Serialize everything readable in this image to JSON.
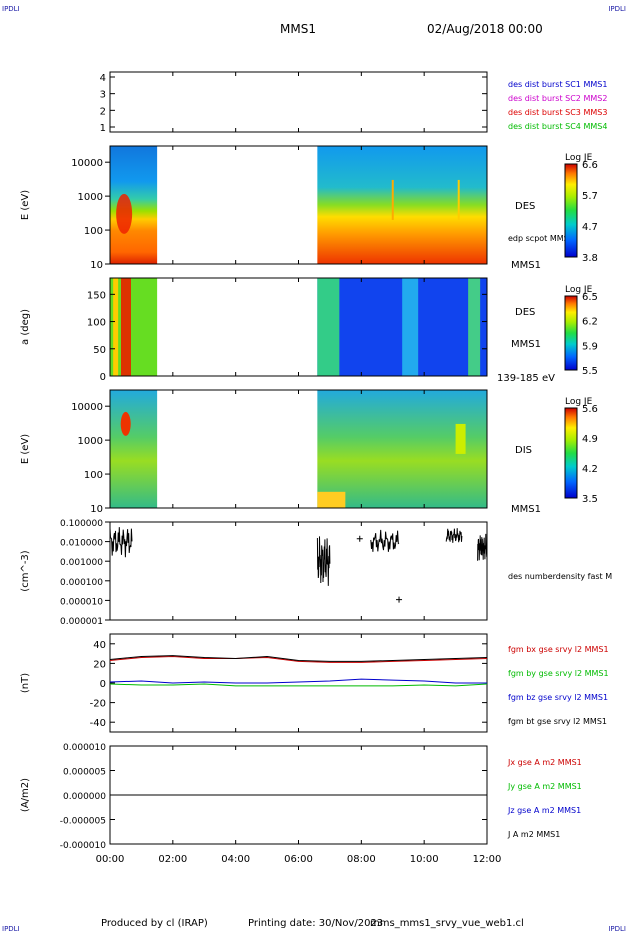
{
  "header": {
    "corner_label": "IPDLI",
    "spacecraft": "MMS1",
    "date_time": "02/Aug/2018 00:00"
  },
  "footer": {
    "produced_by": "Produced by cl (IRAP)",
    "printing_date": "Printing date: 30/Nov/2023",
    "file": "mms_mms1_srvy_vue_web1.cl"
  },
  "colors": {
    "mms1": "#0000cc",
    "mms2": "#cc00cc",
    "mms3": "#dd0000",
    "mms4": "#00bb00",
    "bx": "#cc0000",
    "by": "#00bb00",
    "bz": "#0000cc",
    "bt": "#000000"
  },
  "chart_data": [
    {
      "type": "line",
      "panel": "availability",
      "yticks": [
        "1",
        "2",
        "3",
        "4"
      ],
      "ylim": [
        0.7,
        4.3
      ],
      "series": [
        {
          "name": "des dist burst SC1 MMS1"
        },
        {
          "name": "des dist burst SC2 MMS2"
        },
        {
          "name": "des dist burst SC3 MMS3"
        },
        {
          "name": "des dist burst SC4 MMS4"
        }
      ]
    },
    {
      "type": "heatmap",
      "panel": "des-energy",
      "ylabel": "E (eV)",
      "yscale": "log",
      "ylim": [
        10,
        30000
      ],
      "yticks": [
        "10",
        "100",
        "1000",
        "10000"
      ],
      "label": "DES",
      "annotation": "edp scpot MMS1",
      "sc_label": "MMS1",
      "colorbar": {
        "title": "Log JE",
        "ticks": [
          "6.6",
          "5.7",
          "4.7",
          "3.8"
        ],
        "range": [
          3.8,
          6.6
        ]
      },
      "data_gap_hours": [
        1.5,
        6.6
      ]
    },
    {
      "type": "heatmap",
      "panel": "des-pitch-angle",
      "ylabel": "a (deg)",
      "ylim": [
        0,
        180
      ],
      "yticks": [
        "0",
        "50",
        "100",
        "150"
      ],
      "label": "DES",
      "sc_label": "MMS1",
      "energy_range": "139-185 eV",
      "colorbar": {
        "title": "Log JE",
        "ticks": [
          "6.5",
          "6.2",
          "5.9",
          "5.5"
        ],
        "range": [
          5.5,
          6.5
        ]
      },
      "data_gap_hours": [
        1.5,
        6.6
      ]
    },
    {
      "type": "heatmap",
      "panel": "dis-energy",
      "ylabel": "E (eV)",
      "yscale": "log",
      "ylim": [
        10,
        30000
      ],
      "yticks": [
        "10",
        "100",
        "1000",
        "10000"
      ],
      "label": "DIS",
      "sc_label": "MMS1",
      "colorbar": {
        "title": "Log JE",
        "ticks": [
          "5.6",
          "4.9",
          "4.2",
          "3.5"
        ],
        "range": [
          3.5,
          5.6
        ]
      },
      "data_gap_hours": [
        1.5,
        6.6
      ]
    },
    {
      "type": "line",
      "panel": "density",
      "ylabel": "(cm^-3)",
      "yscale": "log",
      "ylim": [
        1e-06,
        0.1
      ],
      "yticks": [
        "0.100000",
        "0.010000",
        "0.001000",
        "0.000100",
        "0.000010",
        "0.000001"
      ],
      "series": [
        {
          "name": "des numberdensity fast M"
        }
      ],
      "isolated_points": [
        {
          "x": 7.95,
          "y": 0.014
        },
        {
          "x": 9.2,
          "y": 1.1e-05
        }
      ]
    },
    {
      "type": "line",
      "panel": "magnetic-field",
      "ylabel": "(nT)",
      "ylim": [
        -50,
        50
      ],
      "yticks": [
        "40",
        "20",
        "0",
        "-20",
        "-40"
      ],
      "series": [
        {
          "name": "fgm bx gse srvy l2 MMS1",
          "values": [
            23,
            26,
            27,
            25,
            25,
            26,
            22,
            21,
            21,
            22,
            23,
            24,
            25
          ]
        },
        {
          "name": "fgm by gse srvy l2 MMS1",
          "values": [
            -1,
            -2,
            -2,
            -1,
            -3,
            -3,
            -3,
            -3,
            -3,
            -3,
            -2,
            -3,
            -1
          ]
        },
        {
          "name": "fgm bz gse srvy l2 MMS1",
          "values": [
            1,
            2,
            0,
            1,
            0,
            0,
            1,
            2,
            4,
            3,
            2,
            0,
            0
          ]
        },
        {
          "name": "fgm bt gse srvy l2 MMS1",
          "values": [
            24,
            27,
            28,
            26,
            25,
            27,
            23,
            22,
            22,
            23,
            24,
            25,
            26
          ]
        }
      ],
      "x": [
        0,
        1,
        2,
        3,
        4,
        5,
        6,
        7,
        8,
        9,
        10,
        11,
        12
      ]
    },
    {
      "type": "line",
      "panel": "current-density",
      "ylabel": "(A/m2)",
      "ylim": [
        -0.0001,
        0.0001
      ],
      "yticks": [
        "0.000010",
        "0.000005",
        "0.000000",
        "-0.000005",
        "-0.000010"
      ],
      "series": [
        {
          "name": "Jx gse A m2 MMS1"
        },
        {
          "name": "Jy gse A m2 MMS1"
        },
        {
          "name": "Jz gse A m2 MMS1"
        },
        {
          "name": "J A m2 MMS1"
        }
      ]
    }
  ],
  "x_axis": {
    "ticks": [
      "00:00",
      "02:00",
      "04:00",
      "06:00",
      "08:00",
      "10:00",
      "12:00"
    ],
    "range_hours": [
      0,
      12
    ]
  }
}
